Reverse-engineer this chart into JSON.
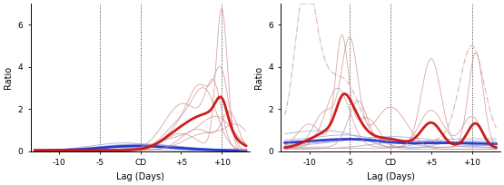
{
  "xlim": [
    -13.5,
    13.5
  ],
  "ylim": [
    0,
    7
  ],
  "yticks": [
    0,
    2,
    4,
    6
  ],
  "xticks": [
    -10,
    -5,
    0,
    5,
    10
  ],
  "xticklabels": [
    "-10",
    "-5",
    "CD",
    "+5",
    "+10"
  ],
  "vlines_a": [
    -5,
    0,
    10
  ],
  "vlines_b": [
    -5,
    0,
    10
  ],
  "ylabel": "Ratio",
  "xlabel": "Lag (Days)",
  "bg": "#ffffff",
  "thin_red": "#cc8888",
  "thick_red": "#cc1111",
  "thin_blue": "#8899cc",
  "thick_blue": "#2233cc",
  "thin_red_dashdot": "#cc9999"
}
